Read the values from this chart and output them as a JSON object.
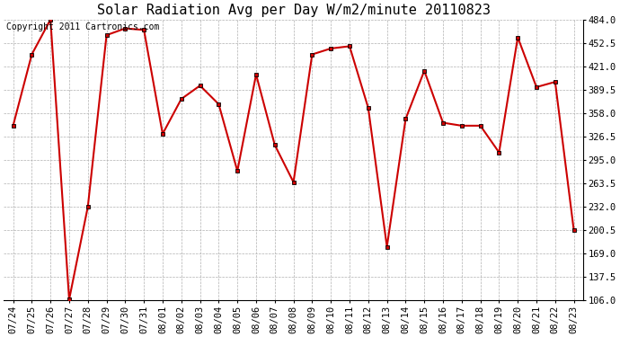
{
  "title": "Solar Radiation Avg per Day W/m2/minute 20110823",
  "copyright": "Copyright 2011 Cartronics.com",
  "dates": [
    "07/24",
    "07/25",
    "07/26",
    "07/27",
    "07/28",
    "07/29",
    "07/30",
    "07/31",
    "08/01",
    "08/02",
    "08/03",
    "08/04",
    "08/05",
    "08/06",
    "08/07",
    "08/08",
    "08/09",
    "08/10",
    "08/11",
    "08/12",
    "08/13",
    "08/14",
    "08/15",
    "08/16",
    "08/17",
    "08/18",
    "08/19",
    "08/20",
    "08/21",
    "08/22",
    "08/23"
  ],
  "values": [
    341.0,
    437.0,
    484.0,
    107.0,
    232.0,
    463.0,
    472.0,
    470.0,
    330.0,
    377.0,
    395.0,
    370.0,
    280.0,
    410.0,
    315.0,
    265.0,
    437.0,
    445.0,
    448.0,
    365.0,
    178.0,
    350.0,
    415.0,
    345.0,
    341.0,
    341.0,
    305.0,
    460.0,
    393.0,
    400.0,
    200.0
  ],
  "ylim": [
    106.0,
    484.0
  ],
  "yticks": [
    106.0,
    137.5,
    169.0,
    200.5,
    232.0,
    263.5,
    295.0,
    326.5,
    358.0,
    389.5,
    421.0,
    452.5,
    484.0
  ],
  "line_color": "#cc0000",
  "marker": "s",
  "marker_size": 3,
  "bg_color": "#ffffff",
  "grid_color": "#b0b0b0",
  "title_fontsize": 11,
  "copyright_fontsize": 7,
  "tick_fontsize": 7.5,
  "figwidth": 6.9,
  "figheight": 3.75,
  "dpi": 100
}
